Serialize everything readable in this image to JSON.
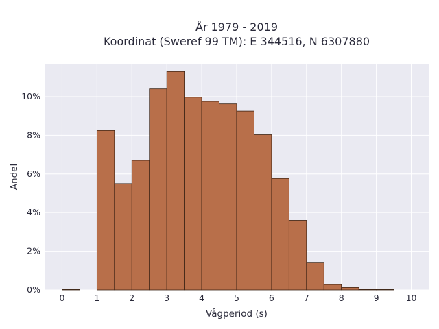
{
  "chart_data": {
    "type": "bar",
    "title_line1": "År 1979 - 2019",
    "title_line2": "Koordinat (Sweref 99 TM): E 344516, N 6307880",
    "xlabel": "Vågperiod (s)",
    "ylabel": "Andel",
    "bin_width": 0.5,
    "bin_starts": [
      0.0,
      0.5,
      1.0,
      1.5,
      2.0,
      2.5,
      3.0,
      3.5,
      4.0,
      4.5,
      5.0,
      5.5,
      6.0,
      6.5,
      7.0,
      7.5,
      8.0,
      8.5,
      9.0,
      9.5
    ],
    "values": [
      0.02,
      0.0,
      8.25,
      5.5,
      6.7,
      10.4,
      11.3,
      9.97,
      9.75,
      9.62,
      9.25,
      8.03,
      5.77,
      3.6,
      1.43,
      0.28,
      0.13,
      0.03,
      0.02,
      0.0
    ],
    "xlim": [
      -0.5,
      10.5
    ],
    "ylim": [
      0,
      11.7
    ],
    "xticks": [
      0,
      1,
      2,
      3,
      4,
      5,
      6,
      7,
      8,
      9,
      10
    ],
    "yticks": [
      0,
      2,
      4,
      6,
      8,
      10
    ],
    "ytick_suffix": "%",
    "bar_color": "#b86f4a",
    "grid": true
  }
}
